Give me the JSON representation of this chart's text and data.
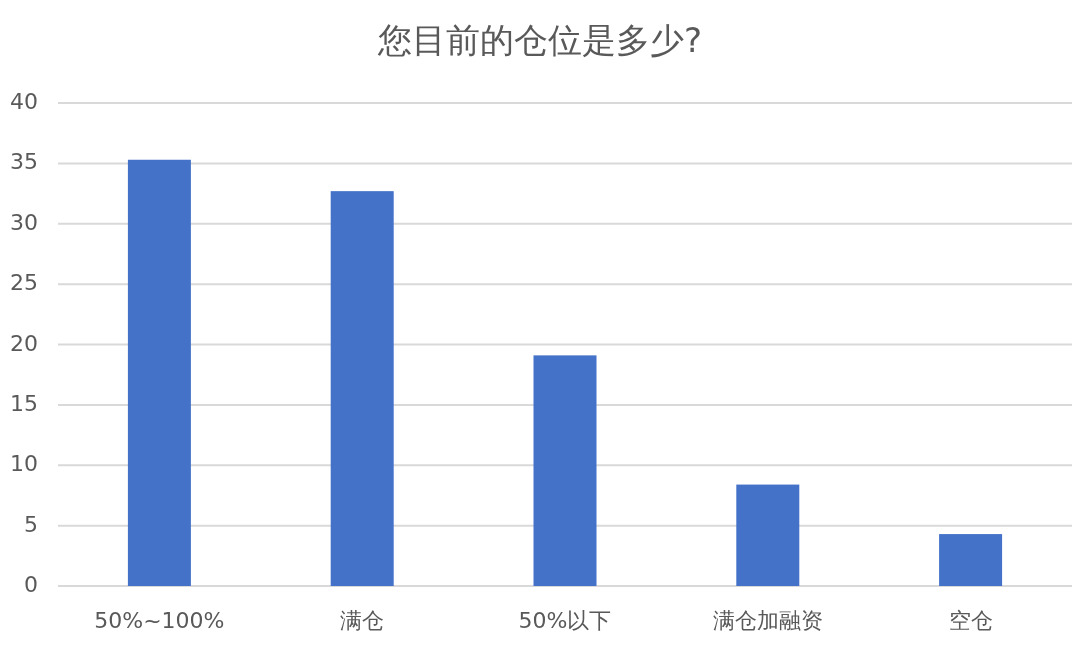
{
  "chart_data": {
    "type": "bar",
    "title": "您目前的仓位是多少?",
    "categories": [
      "50%~100%",
      "满仓",
      "50%以下",
      "满仓加融资",
      "空仓"
    ],
    "values": [
      35.3,
      32.7,
      19.1,
      8.4,
      4.3
    ],
    "color": "#4472c9",
    "ylim": [
      0,
      40
    ],
    "yticks": [
      0,
      5,
      10,
      15,
      20,
      25,
      30,
      35,
      40
    ],
    "grid": "y"
  }
}
